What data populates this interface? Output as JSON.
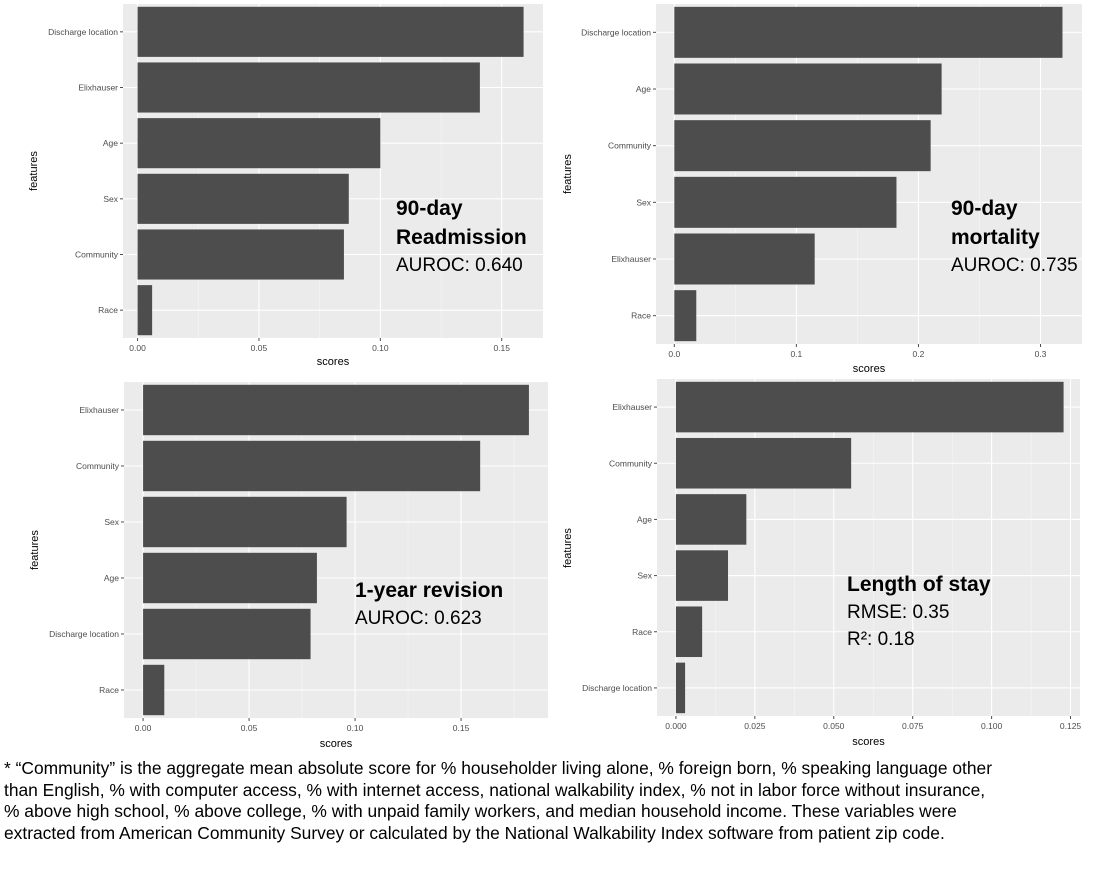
{
  "chart_data": [
    {
      "type": "bar",
      "orientation": "horizontal",
      "annotation_title": [
        "90-day",
        "Readmission"
      ],
      "annotation_metrics": [
        "AUROC: 0.640"
      ],
      "xlabel": "scores",
      "ylabel": "features",
      "categories": [
        "Discharge location",
        "Elixhauser",
        "Age",
        "Sex",
        "Community",
        "Race"
      ],
      "values": [
        0.159,
        0.141,
        0.1,
        0.087,
        0.085,
        0.006
      ],
      "xlim": [
        -0.006,
        0.167
      ],
      "xticks": [
        0,
        0.05,
        0.1,
        0.15
      ],
      "xtick_labels": [
        "0.00",
        "0.05",
        "0.10",
        "0.15"
      ],
      "grid": true
    },
    {
      "type": "bar",
      "orientation": "horizontal",
      "annotation_title": [
        "90-day",
        "mortality"
      ],
      "annotation_metrics": [
        "AUROC: 0.735"
      ],
      "xlabel": "scores",
      "ylabel": "features",
      "categories": [
        "Discharge location",
        "Age",
        "Community",
        "Sex",
        "Elixhauser",
        "Race"
      ],
      "values": [
        0.318,
        0.219,
        0.21,
        0.182,
        0.115,
        0.018
      ],
      "xlim": [
        -0.015,
        0.334
      ],
      "xticks": [
        0,
        0.1,
        0.2,
        0.3
      ],
      "xtick_labels": [
        "0.0",
        "0.1",
        "0.2",
        "0.3"
      ],
      "grid": true
    },
    {
      "type": "bar",
      "orientation": "horizontal",
      "annotation_title": [
        "1-year revision"
      ],
      "annotation_metrics": [
        "AUROC: 0.623"
      ],
      "xlabel": "scores",
      "ylabel": "features",
      "categories": [
        "Elixhauser",
        "Community",
        "Sex",
        "Age",
        "Discharge location",
        "Race"
      ],
      "values": [
        0.182,
        0.159,
        0.096,
        0.082,
        0.079,
        0.01
      ],
      "xlim": [
        -0.009,
        0.191
      ],
      "xticks": [
        0,
        0.05,
        0.1,
        0.15
      ],
      "xtick_labels": [
        "0.00",
        "0.05",
        "0.10",
        "0.15"
      ],
      "grid": true
    },
    {
      "type": "bar",
      "orientation": "horizontal",
      "annotation_title": [
        "Length of stay"
      ],
      "annotation_metrics": [
        "RMSE: 0.35",
        "R²: 0.18"
      ],
      "xlabel": "scores",
      "ylabel": "features",
      "categories": [
        "Elixhauser",
        "Community",
        "Age",
        "Sex",
        "Race",
        "Discharge location"
      ],
      "values": [
        0.1228,
        0.0555,
        0.0223,
        0.0165,
        0.0083,
        0.0029
      ],
      "xlim": [
        -0.006,
        0.128
      ],
      "xticks": [
        0,
        0.025,
        0.05,
        0.075,
        0.1,
        0.125
      ],
      "xtick_labels": [
        "0.000",
        "0.025",
        "0.050",
        "0.075",
        "0.100",
        "0.125"
      ],
      "grid": true
    }
  ],
  "footnote": "* “Community” is the aggregate mean absolute score for % householder living alone, % foreign born, % speaking language other than English, % with computer access, % with internet access, national walkability index, % not in labor force without insurance, % above high school, % above college, % with unpaid family workers, and median household income. These variables were extracted from American Community Survey or calculated by the National Walkability Index software from patient zip code."
}
